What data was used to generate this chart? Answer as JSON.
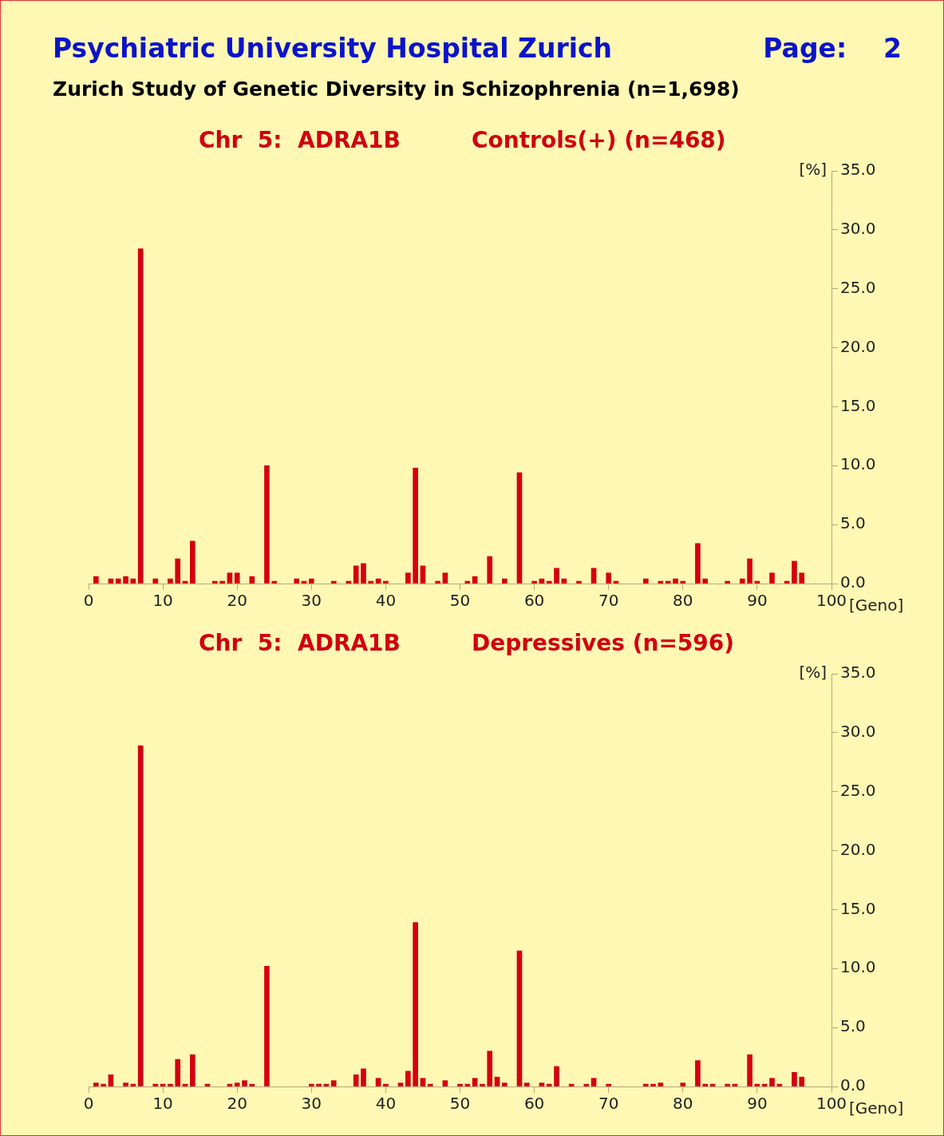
{
  "chart_data": [
    {
      "type": "bar",
      "title": "Chr  5:  ADRA1B",
      "subtitle": "Controls(+) (n=468)",
      "xlabel": "[Geno]",
      "ylabel": "[%]",
      "color": "#d40010",
      "annotations": [
        "Psychiatric University Hospital Zurich",
        "Page:    2",
        "Zurich Study of Genetic Diversity in Schizophrenia (n=1,698)"
      ],
      "x": [
        1,
        3,
        4,
        5,
        6,
        7,
        9,
        11,
        12,
        13,
        14,
        17,
        18,
        19,
        20,
        22,
        24,
        25,
        28,
        29,
        30,
        33,
        35,
        36,
        37,
        38,
        39,
        40,
        43,
        44,
        45,
        47,
        48,
        51,
        52,
        54,
        56,
        58,
        60,
        61,
        62,
        63,
        64,
        66,
        68,
        70,
        71,
        75,
        77,
        78,
        79,
        80,
        82,
        83,
        86,
        88,
        89,
        90,
        92,
        94,
        95,
        96
      ],
      "values": [
        0.6,
        0.4,
        0.4,
        0.6,
        0.4,
        28.4,
        0.4,
        0.4,
        2.1,
        0.2,
        3.6,
        0.2,
        0.2,
        0.9,
        0.9,
        0.6,
        10.0,
        0.2,
        0.4,
        0.2,
        0.4,
        0.2,
        0.2,
        1.5,
        1.7,
        0.2,
        0.4,
        0.2,
        0.9,
        9.8,
        1.5,
        0.2,
        0.9,
        0.2,
        0.6,
        2.3,
        0.4,
        9.4,
        0.2,
        0.4,
        0.2,
        1.3,
        0.4,
        0.2,
        1.3,
        0.9,
        0.2,
        0.4,
        0.2,
        0.2,
        0.4,
        0.2,
        3.4,
        0.4,
        0.2,
        0.4,
        2.1,
        0.2,
        0.9,
        0.2,
        1.9,
        0.9
      ],
      "xlim": [
        0,
        100
      ],
      "xticks": [
        0,
        10,
        20,
        30,
        40,
        50,
        60,
        70,
        80,
        90,
        100
      ],
      "ylim": [
        0,
        35
      ],
      "yticks": [
        {
          "value": 0,
          "label": "0.0"
        },
        {
          "value": 5,
          "label": "5.0"
        },
        {
          "value": 10,
          "label": "10.0"
        },
        {
          "value": 15,
          "label": "15.0"
        },
        {
          "value": 20,
          "label": "20.0"
        },
        {
          "value": 25,
          "label": "25.0"
        },
        {
          "value": 30,
          "label": "30.0"
        },
        {
          "value": 35,
          "label": "35.0"
        }
      ]
    },
    {
      "type": "bar",
      "title": "Chr  5:  ADRA1B",
      "subtitle": "Depressives (n=596)",
      "xlabel": "[Geno]",
      "ylabel": "[%]",
      "color": "#d40010",
      "x": [
        1,
        2,
        3,
        5,
        6,
        7,
        9,
        10,
        11,
        12,
        13,
        14,
        16,
        19,
        20,
        21,
        22,
        24,
        30,
        31,
        32,
        33,
        36,
        37,
        39,
        40,
        42,
        43,
        44,
        45,
        46,
        48,
        50,
        51,
        52,
        53,
        54,
        55,
        56,
        58,
        59,
        61,
        62,
        63,
        65,
        67,
        68,
        70,
        75,
        76,
        77,
        80,
        82,
        83,
        84,
        86,
        87,
        89,
        90,
        91,
        92,
        93,
        95,
        96
      ],
      "values": [
        0.3,
        0.2,
        1.0,
        0.3,
        0.2,
        28.9,
        0.2,
        0.2,
        0.2,
        2.3,
        0.2,
        2.7,
        0.2,
        0.2,
        0.3,
        0.5,
        0.2,
        10.2,
        0.2,
        0.2,
        0.2,
        0.5,
        1.0,
        1.5,
        0.7,
        0.2,
        0.3,
        1.3,
        13.9,
        0.7,
        0.2,
        0.5,
        0.2,
        0.2,
        0.7,
        0.2,
        3.0,
        0.8,
        0.3,
        11.5,
        0.3,
        0.3,
        0.2,
        1.7,
        0.2,
        0.2,
        0.7,
        0.2,
        0.2,
        0.2,
        0.3,
        0.3,
        2.2,
        0.2,
        0.2,
        0.2,
        0.2,
        2.7,
        0.2,
        0.2,
        0.7,
        0.2,
        1.2,
        0.8
      ],
      "xlim": [
        0,
        100
      ],
      "xticks": [
        0,
        10,
        20,
        30,
        40,
        50,
        60,
        70,
        80,
        90,
        100
      ],
      "ylim": [
        0,
        35
      ],
      "yticks": [
        {
          "value": 0,
          "label": "0.0"
        },
        {
          "value": 5,
          "label": "5.0"
        },
        {
          "value": 10,
          "label": "10.0"
        },
        {
          "value": 15,
          "label": "15.0"
        },
        {
          "value": 20,
          "label": "20.0"
        },
        {
          "value": 25,
          "label": "25.0"
        },
        {
          "value": 30,
          "label": "30.0"
        },
        {
          "value": 35,
          "label": "35.0"
        }
      ]
    }
  ]
}
